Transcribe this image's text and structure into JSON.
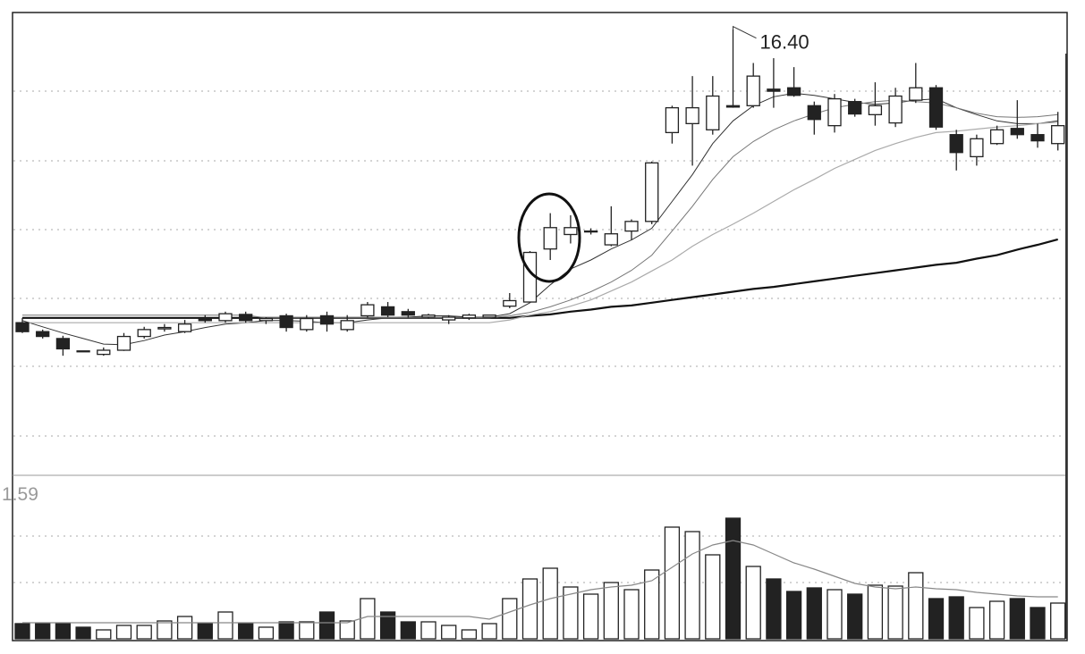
{
  "chart_data": {
    "type": "candlestick",
    "annotation": "16.40",
    "ylim": [
      9.95,
      16.63
    ],
    "y2lim": [
      0,
      1.59
    ],
    "y2ticks": [
      1.59
    ],
    "up_color": "#ffffff",
    "down_color": "#222222",
    "candles": {
      "open": [
        12.14,
        12.01,
        11.91,
        11.73,
        11.68,
        11.74,
        11.94,
        12.05,
        12.01,
        12.2,
        12.17,
        12.26,
        12.17,
        12.24,
        12.04,
        12.24,
        12.04,
        12.24,
        12.37,
        12.3,
        12.22,
        12.18,
        12.21,
        12.22,
        12.38,
        12.44,
        13.21,
        13.42,
        13.46,
        13.27,
        13.47,
        13.61,
        14.9,
        15.03,
        14.94,
        15.29,
        15.29,
        15.53,
        15.55,
        15.29,
        15.0,
        15.35,
        15.16,
        15.04,
        15.37,
        15.55,
        14.87,
        14.55,
        14.74,
        14.96,
        14.87,
        14.74
      ],
      "high": [
        12.21,
        12.04,
        11.95,
        11.73,
        11.78,
        11.99,
        12.08,
        12.12,
        12.18,
        12.25,
        12.3,
        12.3,
        12.22,
        12.27,
        12.25,
        12.3,
        12.25,
        12.44,
        12.44,
        12.34,
        12.27,
        12.25,
        12.27,
        12.25,
        12.57,
        13.18,
        13.73,
        13.7,
        13.51,
        13.83,
        13.64,
        14.48,
        15.29,
        15.72,
        15.72,
        16.4,
        15.91,
        15.98,
        15.85,
        15.35,
        15.46,
        15.39,
        15.63,
        15.55,
        15.91,
        15.59,
        14.94,
        14.87,
        15.0,
        15.37,
        15.03,
        15.2
      ],
      "low": [
        11.99,
        11.91,
        11.66,
        11.72,
        11.66,
        11.73,
        11.91,
        12.01,
        11.99,
        12.14,
        12.14,
        12.14,
        12.12,
        12.01,
        12.01,
        12.01,
        12.01,
        12.21,
        12.22,
        12.21,
        12.2,
        12.12,
        12.18,
        12.22,
        12.35,
        12.43,
        13.05,
        13.29,
        13.42,
        13.25,
        13.34,
        13.57,
        14.74,
        14.42,
        14.87,
        15.26,
        15.26,
        15.26,
        15.42,
        14.87,
        14.9,
        15.13,
        15.0,
        14.98,
        15.33,
        14.94,
        14.35,
        14.42,
        14.72,
        14.81,
        14.68,
        14.64
      ],
      "close": [
        12.01,
        11.94,
        11.76,
        11.72,
        11.74,
        11.94,
        12.04,
        12.07,
        12.12,
        12.17,
        12.27,
        12.17,
        12.2,
        12.07,
        12.2,
        12.12,
        12.17,
        12.4,
        12.25,
        12.25,
        12.25,
        12.22,
        12.25,
        12.25,
        12.46,
        13.16,
        13.52,
        13.52,
        13.47,
        13.43,
        13.61,
        14.46,
        15.26,
        15.26,
        15.43,
        15.27,
        15.72,
        15.5,
        15.44,
        15.09,
        15.39,
        15.17,
        15.29,
        15.43,
        15.55,
        14.98,
        14.61,
        14.81,
        14.94,
        14.87,
        14.78,
        15.0
      ]
    },
    "ma_lines": [
      {
        "color": "#111111",
        "width": 2.2,
        "values": [
          12.21,
          12.21,
          12.21,
          12.21,
          12.21,
          12.21,
          12.21,
          12.21,
          12.21,
          12.21,
          12.21,
          12.21,
          12.21,
          12.21,
          12.21,
          12.21,
          12.21,
          12.21,
          12.21,
          12.21,
          12.21,
          12.21,
          12.21,
          12.21,
          12.21,
          12.24,
          12.26,
          12.3,
          12.33,
          12.37,
          12.39,
          12.43,
          12.47,
          12.51,
          12.55,
          12.59,
          12.63,
          12.66,
          12.7,
          12.74,
          12.78,
          12.82,
          12.86,
          12.9,
          12.94,
          12.98,
          13.01,
          13.07,
          13.12,
          13.2,
          13.27,
          13.35
        ]
      },
      {
        "color": "#333333",
        "width": 1,
        "values": [
          12.17,
          12.08,
          11.99,
          11.91,
          11.83,
          11.82,
          11.88,
          11.96,
          12.01,
          12.07,
          12.12,
          12.14,
          12.17,
          12.17,
          12.16,
          12.14,
          12.14,
          12.18,
          12.21,
          12.22,
          12.24,
          12.24,
          12.22,
          12.22,
          12.27,
          12.43,
          12.69,
          12.92,
          13.05,
          13.21,
          13.34,
          13.51,
          13.9,
          14.29,
          14.74,
          15.07,
          15.29,
          15.42,
          15.47,
          15.44,
          15.39,
          15.34,
          15.31,
          15.33,
          15.37,
          15.39,
          15.26,
          15.16,
          15.07,
          15.03,
          15.03,
          15.07
        ]
      },
      {
        "color": "#777777",
        "width": 1,
        "values": [
          12.25,
          12.25,
          12.25,
          12.25,
          12.25,
          12.25,
          12.25,
          12.25,
          12.25,
          12.25,
          12.25,
          12.25,
          12.21,
          12.21,
          12.21,
          12.21,
          12.21,
          12.21,
          12.21,
          12.21,
          12.21,
          12.21,
          12.21,
          12.21,
          12.24,
          12.29,
          12.37,
          12.47,
          12.59,
          12.73,
          12.9,
          13.12,
          13.47,
          13.83,
          14.22,
          14.55,
          14.77,
          14.94,
          15.07,
          15.17,
          15.26,
          15.31,
          15.35,
          15.37,
          15.35,
          15.33,
          15.26,
          15.18,
          15.13,
          15.12,
          15.13,
          15.16
        ]
      },
      {
        "color": "#aaaaaa",
        "width": 1.2,
        "values": [
          12.14,
          12.14,
          12.14,
          12.14,
          12.14,
          12.14,
          12.14,
          12.14,
          12.14,
          12.14,
          12.14,
          12.14,
          12.14,
          12.14,
          12.14,
          12.14,
          12.14,
          12.14,
          12.14,
          12.14,
          12.14,
          12.14,
          12.14,
          12.14,
          12.18,
          12.25,
          12.3,
          12.38,
          12.47,
          12.6,
          12.73,
          12.89,
          13.05,
          13.25,
          13.42,
          13.57,
          13.73,
          13.9,
          14.07,
          14.22,
          14.38,
          14.51,
          14.64,
          14.74,
          14.83,
          14.9,
          14.92,
          14.95,
          14.98,
          15.0,
          15.03,
          15.05
        ]
      }
    ],
    "volume": {
      "values": [
        0.17,
        0.17,
        0.17,
        0.13,
        0.1,
        0.15,
        0.15,
        0.2,
        0.25,
        0.17,
        0.3,
        0.17,
        0.13,
        0.19,
        0.19,
        0.3,
        0.2,
        0.45,
        0.3,
        0.19,
        0.19,
        0.15,
        0.1,
        0.17,
        0.45,
        0.67,
        0.79,
        0.58,
        0.5,
        0.63,
        0.55,
        0.77,
        1.25,
        1.2,
        0.94,
        1.35,
        0.81,
        0.67,
        0.53,
        0.57,
        0.55,
        0.5,
        0.6,
        0.59,
        0.74,
        0.45,
        0.47,
        0.35,
        0.42,
        0.45,
        0.35,
        0.4
      ]
    },
    "volume_ma": {
      "color": "#888888",
      "values": [
        0.18,
        0.18,
        0.18,
        0.18,
        0.18,
        0.18,
        0.18,
        0.18,
        0.18,
        0.18,
        0.18,
        0.18,
        0.18,
        0.18,
        0.18,
        0.18,
        0.18,
        0.25,
        0.25,
        0.25,
        0.25,
        0.25,
        0.25,
        0.22,
        0.3,
        0.38,
        0.45,
        0.5,
        0.55,
        0.58,
        0.6,
        0.65,
        0.8,
        0.95,
        1.05,
        1.1,
        1.05,
        0.95,
        0.85,
        0.78,
        0.7,
        0.62,
        0.58,
        0.56,
        0.58,
        0.56,
        0.55,
        0.52,
        0.5,
        0.48,
        0.47,
        0.47
      ]
    }
  }
}
